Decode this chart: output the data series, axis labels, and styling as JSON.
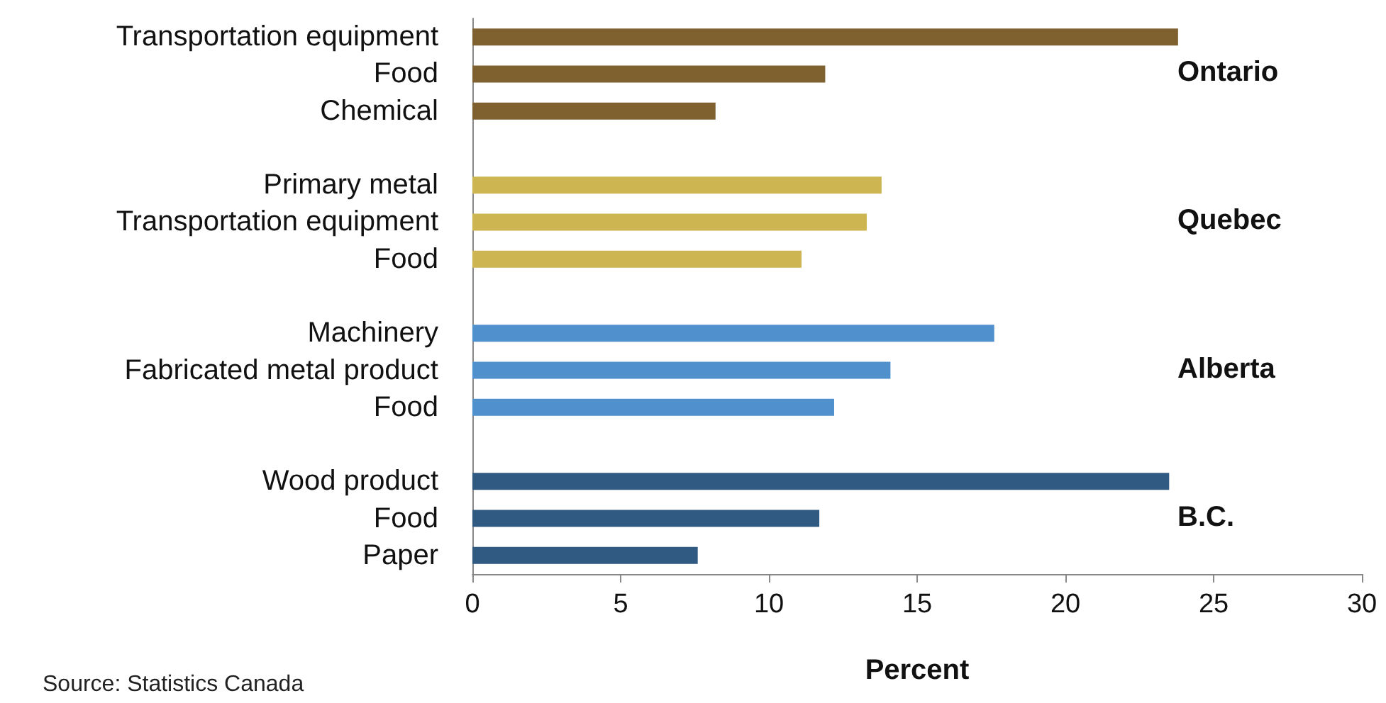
{
  "chart_data": {
    "type": "bar",
    "orientation": "horizontal",
    "xlabel": "Percent",
    "annotations": [
      "Source: Statistics Canada"
    ],
    "categories": [
      "Transportation equipment",
      "Food",
      "Chemical",
      null,
      "Primary metal",
      "Transportation equipment",
      "Food",
      null,
      "Machinery",
      "Fabricated metal product",
      "Food",
      null,
      "Wood product",
      "Food",
      "Paper"
    ],
    "series": [
      {
        "name": "Ontario",
        "color": "#7f6130",
        "values": [
          23.8,
          11.9,
          8.2,
          null,
          null,
          null,
          null,
          null,
          null,
          null,
          null,
          null,
          null,
          null,
          null
        ]
      },
      {
        "name": "Quebec",
        "color": "#cdb552",
        "values": [
          null,
          null,
          null,
          null,
          13.8,
          13.3,
          11.1,
          null,
          null,
          null,
          null,
          null,
          null,
          null,
          null
        ]
      },
      {
        "name": "Alberta",
        "color": "#5090cd",
        "values": [
          null,
          null,
          null,
          null,
          null,
          null,
          null,
          null,
          17.6,
          14.1,
          12.2,
          null,
          null,
          null,
          null
        ]
      },
      {
        "name": "B.C.",
        "color": "#315a82",
        "values": [
          null,
          null,
          null,
          null,
          null,
          null,
          null,
          null,
          null,
          null,
          null,
          null,
          23.5,
          11.7,
          7.6
        ]
      }
    ],
    "xlim": [
      0,
      30
    ],
    "xticks": [
      0,
      5,
      10,
      15,
      20,
      25,
      30
    ],
    "grid": false
  }
}
